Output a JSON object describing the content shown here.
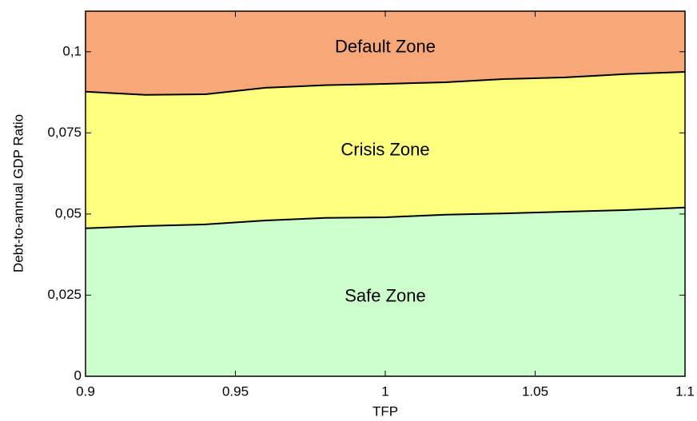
{
  "chart_data": {
    "type": "area",
    "xlabel": "TFP",
    "ylabel": "Debt-to-annual GDP Ratio",
    "x": [
      0.9,
      0.92,
      0.94,
      0.96,
      0.98,
      1.0,
      1.02,
      1.04,
      1.06,
      1.08,
      1.1
    ],
    "series": [
      {
        "name": "Crisis Zone",
        "color": "#ffff80",
        "values": [
          0.0877,
          0.0867,
          0.0869,
          0.0889,
          0.0897,
          0.0901,
          0.0906,
          0.0916,
          0.0921,
          0.0931,
          0.0938
        ]
      },
      {
        "name": "Safe Zone",
        "color": "#ccffcc",
        "values": [
          0.0456,
          0.0463,
          0.0468,
          0.048,
          0.0488,
          0.049,
          0.0498,
          0.0502,
          0.0507,
          0.0512,
          0.052
        ]
      }
    ],
    "default_zone": {
      "name": "Default Zone",
      "color": "#f8a878"
    },
    "xlim": [
      0.9,
      1.1
    ],
    "xticks": [
      0.9,
      0.95,
      1,
      1.05,
      1.1
    ],
    "ylim": [
      0,
      0.1125
    ],
    "yticks": [
      0,
      {
        "value": 0.025,
        "label": "0,025"
      },
      {
        "value": 0.05,
        "label": "0,05"
      },
      {
        "value": 0.075,
        "label": "0,075"
      },
      {
        "value": 0.1,
        "label": "0,1"
      }
    ]
  }
}
